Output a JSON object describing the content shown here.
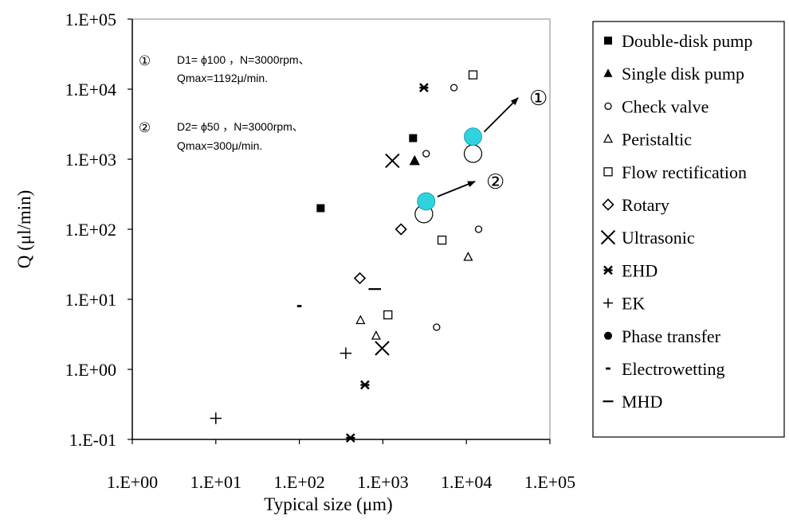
{
  "chart_data": {
    "type": "scatter",
    "xlabel": "Typical size (μm)",
    "ylabel": "Q (μl/min)",
    "xscale": "log",
    "yscale": "log",
    "xlim": [
      1,
      100000
    ],
    "ylim": [
      0.1,
      100000
    ],
    "xticks": [
      1,
      10,
      100,
      1000,
      10000,
      100000
    ],
    "yticks": [
      0.1,
      1,
      10,
      100,
      1000,
      10000,
      100000
    ],
    "xtick_labels": [
      "1.E+00",
      "1.E+01",
      "1.E+02",
      "1.E+03",
      "1.E+04",
      "1.E+05"
    ],
    "ytick_labels": [
      "1.E-01",
      "1.E+00",
      "1.E+01",
      "1.E+02",
      "1.E+03",
      "1.E+04",
      "1.E+05"
    ],
    "grid": false,
    "legend_position": "right",
    "series": [
      {
        "name": "Double-disk pump",
        "marker": "square-filled",
        "points": [
          [
            180,
            200
          ],
          [
            2300,
            2000
          ]
        ]
      },
      {
        "name": "Single disk pump",
        "marker": "triangle-filled",
        "points": [
          [
            2400,
            950
          ]
        ]
      },
      {
        "name": "Check valve",
        "marker": "circle-open",
        "points": [
          [
            3300,
            1200
          ],
          [
            7100,
            10500
          ],
          [
            4400,
            4
          ],
          [
            14000,
            100
          ]
        ]
      },
      {
        "name": "Peristaltic",
        "marker": "triangle-open",
        "points": [
          [
            540,
            5
          ],
          [
            830,
            3
          ],
          [
            10500,
            40
          ]
        ]
      },
      {
        "name": "Flow rectification",
        "marker": "square-open",
        "points": [
          [
            12000,
            16000
          ],
          [
            5100,
            70
          ],
          [
            1150,
            6
          ]
        ]
      },
      {
        "name": "Rotary",
        "marker": "diamond-open",
        "points": [
          [
            530,
            20
          ],
          [
            1650,
            100
          ]
        ]
      },
      {
        "name": "Ultrasonic",
        "marker": "x-large",
        "points": [
          [
            1300,
            950
          ],
          [
            980,
            2
          ]
        ]
      },
      {
        "name": "EHD",
        "marker": "asterisk",
        "points": [
          [
            3100,
            10500
          ],
          [
            610,
            0.6
          ],
          [
            410,
            0.105
          ]
        ]
      },
      {
        "name": "EK",
        "marker": "plus",
        "points": [
          [
            10,
            0.2
          ],
          [
            360,
            1.7
          ]
        ]
      },
      {
        "name": "Phase transfer",
        "marker": "circle-filled",
        "points": []
      },
      {
        "name": "Electrowetting",
        "marker": "dot",
        "points": [
          [
            100,
            8
          ]
        ]
      },
      {
        "name": "MHD",
        "marker": "dash",
        "points": [
          [
            800,
            14
          ]
        ]
      }
    ],
    "highlights": [
      {
        "label": "①",
        "x": 12000,
        "y": 2100,
        "paired_x": 12000,
        "paired_y": 1200
      },
      {
        "label": "②",
        "x": 3300,
        "y": 250,
        "paired_x": 3100,
        "paired_y": 165
      }
    ],
    "annotations": [
      {
        "num": "①",
        "line1": "D1= ϕ100 ，N=3000rpm、",
        "line2": "Qmax=1192μ/min."
      },
      {
        "num": "②",
        "line1": "D2= ϕ50 ，N=3000rpm、",
        "line2": "Qmax=300μ/min."
      }
    ],
    "colors": {
      "highlight_fill": "#2fd3de",
      "axis": "#000000",
      "marker": "#000000"
    }
  }
}
